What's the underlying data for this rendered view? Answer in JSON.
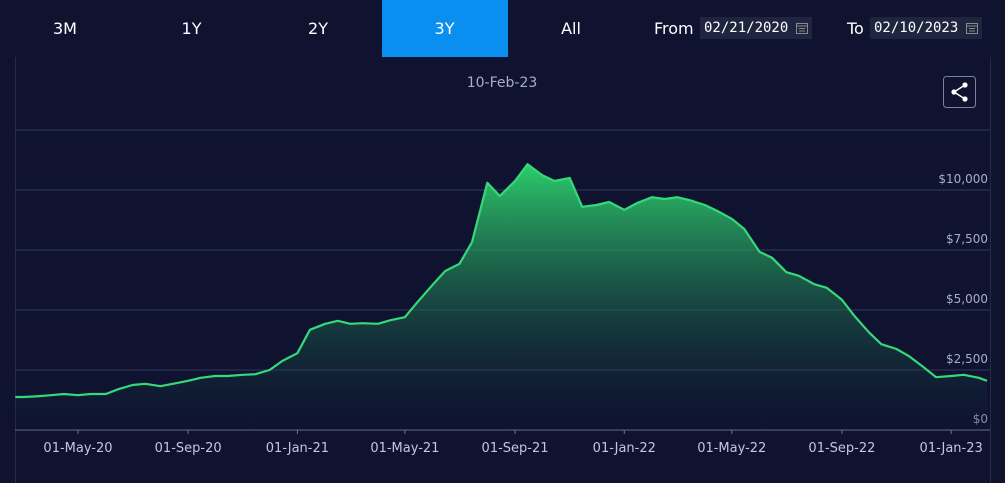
{
  "tabs": [
    "3M",
    "1Y",
    "2Y",
    "3Y",
    "All"
  ],
  "active_tab": "3Y",
  "from_label": "From",
  "from_date": "02/21/2020",
  "to_label": "To",
  "to_date": "02/10/2023",
  "chart_data": {
    "type": "area",
    "title": "10-Feb-23",
    "color": "#35d97a",
    "grid": true,
    "x": [
      "2020-02-21",
      "2020-03-01",
      "2020-03-15",
      "2020-04-01",
      "2020-04-15",
      "2020-05-01",
      "2020-05-15",
      "2020-06-01",
      "2020-06-15",
      "2020-07-01",
      "2020-07-15",
      "2020-08-01",
      "2020-08-15",
      "2020-09-01",
      "2020-09-15",
      "2020-10-01",
      "2020-10-15",
      "2020-11-01",
      "2020-11-15",
      "2020-12-01",
      "2020-12-15",
      "2021-01-01",
      "2021-01-15",
      "2021-02-01",
      "2021-02-15",
      "2021-03-01",
      "2021-03-15",
      "2021-04-01",
      "2021-04-15",
      "2021-05-01",
      "2021-05-15",
      "2021-06-01",
      "2021-06-15",
      "2021-07-01",
      "2021-07-15",
      "2021-08-01",
      "2021-08-15",
      "2021-09-01",
      "2021-09-15",
      "2021-10-01",
      "2021-10-15",
      "2021-11-01",
      "2021-11-15",
      "2021-12-01",
      "2021-12-15",
      "2022-01-01",
      "2022-01-15",
      "2022-02-01",
      "2022-02-15",
      "2022-03-01",
      "2022-03-15",
      "2022-04-01",
      "2022-04-15",
      "2022-05-01",
      "2022-05-15",
      "2022-06-01",
      "2022-06-15",
      "2022-07-01",
      "2022-07-15",
      "2022-08-01",
      "2022-08-15",
      "2022-09-01",
      "2022-09-15",
      "2022-10-01",
      "2022-10-15",
      "2022-11-01",
      "2022-11-15",
      "2022-12-01",
      "2022-12-15",
      "2023-01-01",
      "2023-01-15",
      "2023-02-01",
      "2023-02-10"
    ],
    "values": [
      1375,
      1375,
      1400,
      1450,
      1500,
      1450,
      1500,
      1500,
      1700,
      1875,
      1925,
      1825,
      1925,
      2050,
      2175,
      2250,
      2250,
      2300,
      2325,
      2500,
      2875,
      3200,
      4175,
      4425,
      4550,
      4425,
      4450,
      4425,
      4575,
      4700,
      5325,
      6050,
      6625,
      6925,
      7825,
      10300,
      9750,
      10375,
      11075,
      10625,
      10375,
      10500,
      9300,
      9375,
      9500,
      9175,
      9450,
      9700,
      9625,
      9700,
      9575,
      9375,
      9125,
      8800,
      8375,
      7425,
      7175,
      6575,
      6425,
      6075,
      5925,
      5425,
      4750,
      4075,
      3575,
      3375,
      3075,
      2625,
      2200,
      2250,
      2300,
      2175,
      2050
    ],
    "xlim": [
      "2020-02-21",
      "2023-02-10"
    ],
    "xticks": [
      {
        "value": "2020-05-01",
        "label": "01-May-20"
      },
      {
        "value": "2020-09-01",
        "label": "01-Sep-20"
      },
      {
        "value": "2021-01-01",
        "label": "01-Jan-21"
      },
      {
        "value": "2021-05-01",
        "label": "01-May-21"
      },
      {
        "value": "2021-09-01",
        "label": "01-Sep-21"
      },
      {
        "value": "2022-01-01",
        "label": "01-Jan-22"
      },
      {
        "value": "2022-05-01",
        "label": "01-May-22"
      },
      {
        "value": "2022-09-01",
        "label": "01-Sep-22"
      },
      {
        "value": "2023-01-01",
        "label": "01-Jan-23"
      }
    ],
    "ylim": [
      0,
      12500
    ],
    "yticks": [
      {
        "value": 0,
        "label": "$0"
      },
      {
        "value": 2500,
        "label": "$2,500"
      },
      {
        "value": 5000,
        "label": "$5,000"
      },
      {
        "value": 7500,
        "label": "$7,500"
      },
      {
        "value": 10000,
        "label": "$10,000"
      }
    ]
  }
}
